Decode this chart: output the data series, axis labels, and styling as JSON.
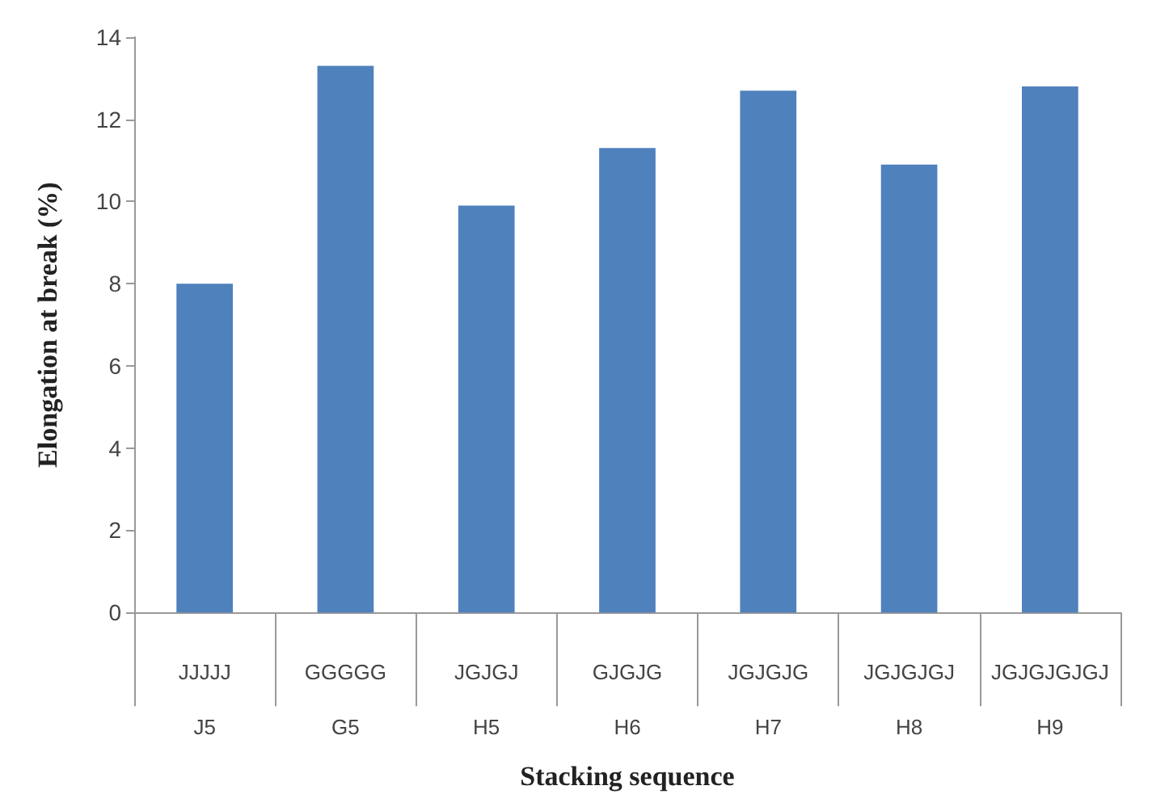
{
  "chart_data": {
    "type": "bar",
    "xlabel": "Stacking sequence",
    "ylabel": "Elongation at break (%)",
    "categories": [
      "JJJJJ\nJ5",
      "GGGGG\nG5",
      "JGJGJ\nH5",
      "GJGJG\nH6",
      "JGJGJG\nH7",
      "JGJGJGJ\nH8",
      "JGJGJGJGJ\nH9"
    ],
    "values": [
      8.0,
      13.3,
      9.9,
      11.3,
      12.7,
      10.9,
      12.8
    ],
    "color": "#4f81bd",
    "ylim": [
      0,
      14
    ],
    "yticks": [
      0,
      2,
      4,
      6,
      8,
      10,
      12,
      14
    ]
  }
}
